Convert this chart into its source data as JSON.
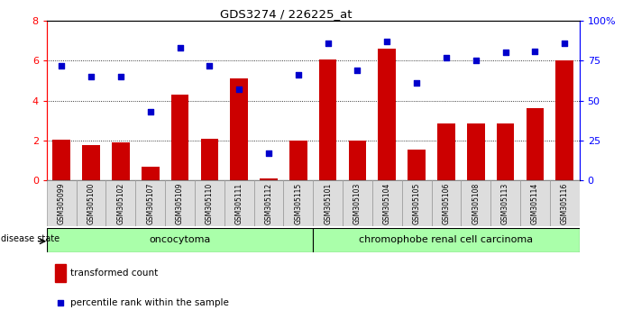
{
  "title": "GDS3274 / 226225_at",
  "categories": [
    "GSM305099",
    "GSM305100",
    "GSM305102",
    "GSM305107",
    "GSM305109",
    "GSM305110",
    "GSM305111",
    "GSM305112",
    "GSM305115",
    "GSM305101",
    "GSM305103",
    "GSM305104",
    "GSM305105",
    "GSM305106",
    "GSM305108",
    "GSM305113",
    "GSM305114",
    "GSM305116"
  ],
  "bar_values": [
    2.05,
    1.75,
    1.9,
    0.7,
    4.3,
    2.1,
    5.1,
    0.1,
    2.0,
    6.05,
    2.0,
    6.6,
    1.55,
    2.85,
    2.85,
    2.85,
    3.6,
    6.0
  ],
  "dot_values_pct": [
    72,
    65,
    65,
    43,
    83,
    72,
    57,
    17,
    66,
    86,
    69,
    87,
    61,
    77,
    75,
    80,
    81,
    86
  ],
  "bar_color": "#cc0000",
  "dot_color": "#0000cc",
  "ylim_left": [
    0,
    8
  ],
  "ylim_right": [
    0,
    100
  ],
  "yticks_left": [
    0,
    2,
    4,
    6,
    8
  ],
  "yticks_right": [
    0,
    25,
    50,
    75,
    100
  ],
  "ytick_labels_right": [
    "0",
    "25",
    "50",
    "75",
    "100%"
  ],
  "grid_lines": [
    2,
    4,
    6
  ],
  "group1_label": "oncocytoma",
  "group2_label": "chromophobe renal cell carcinoma",
  "group1_count": 9,
  "group2_count": 9,
  "legend_bar_label": "transformed count",
  "legend_dot_label": "percentile rank within the sample",
  "disease_state_label": "disease state",
  "background_color": "#ffffff",
  "xticklabel_bg": "#dddddd",
  "group_bg_color": "#aaffaa",
  "bar_width": 0.6
}
